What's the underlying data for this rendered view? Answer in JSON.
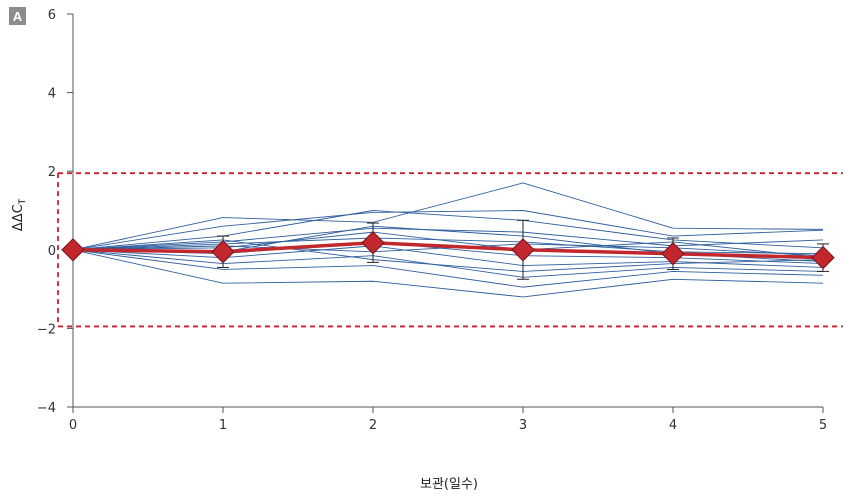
{
  "chart_data": {
    "type": "line",
    "panel_label": "A",
    "title": "",
    "xlabel": "보관(일수)",
    "ylabel_prefix": "ΔΔC",
    "ylabel_subscript": "T",
    "x": [
      0,
      1,
      2,
      3,
      4,
      5
    ],
    "xlim": [
      0,
      5
    ],
    "ylim": [
      -4,
      6
    ],
    "x_ticks": [
      "0",
      "1",
      "2",
      "3",
      "4",
      "5"
    ],
    "y_ticks": [
      "−4",
      "−2",
      "0",
      "2",
      "4",
      "6"
    ],
    "y_tick_values": [
      -4,
      -2,
      0,
      2,
      4,
      6
    ],
    "grid": false,
    "threshold_band": {
      "upper": 1.95,
      "lower": -1.95,
      "style": "dashed",
      "color": "#cc1f2d"
    },
    "colors": {
      "individual": "#2f5f9e",
      "mean": "#c1272d",
      "marker": "#c1272d",
      "axis": "#555555",
      "error": "#222222",
      "panel": "#8c8c8c"
    },
    "series": [
      {
        "values": [
          0,
          0.82,
          0.7,
          1.7,
          0.55,
          0.52
        ]
      },
      {
        "values": [
          0,
          0.6,
          0.95,
          1.0,
          0.35,
          0.5
        ]
      },
      {
        "values": [
          0,
          0.35,
          1.0,
          0.75,
          0.25,
          0.05
        ]
      },
      {
        "values": [
          0,
          0.2,
          0.55,
          0.45,
          0.1,
          0.25
        ]
      },
      {
        "values": [
          0,
          0.15,
          0.3,
          0.2,
          -0.05,
          -0.1
        ]
      },
      {
        "values": [
          0,
          0.05,
          0.45,
          0.0,
          0.2,
          -0.2
        ]
      },
      {
        "values": [
          0,
          -0.1,
          0.2,
          -0.15,
          -0.2,
          -0.35
        ]
      },
      {
        "values": [
          0,
          -0.2,
          0.1,
          -0.4,
          -0.3,
          -0.45
        ]
      },
      {
        "values": [
          0,
          -0.35,
          -0.15,
          -0.7,
          -0.45,
          -0.55
        ]
      },
      {
        "values": [
          0,
          -0.5,
          -0.4,
          -0.95,
          -0.55,
          -0.65
        ]
      },
      {
        "values": [
          0,
          -0.85,
          -0.8,
          -1.2,
          -0.75,
          -0.85
        ]
      },
      {
        "values": [
          0,
          0.25,
          -0.25,
          -0.55,
          -0.35,
          -0.25
        ]
      },
      {
        "values": [
          0,
          -0.05,
          0.6,
          0.35,
          -0.1,
          -0.3
        ]
      },
      {
        "values": [
          0,
          0.1,
          -0.05,
          0.15,
          0.05,
          -0.15
        ]
      }
    ],
    "mean": {
      "values": [
        0.0,
        -0.05,
        0.18,
        0.0,
        -0.1,
        -0.2
      ],
      "error": [
        0.0,
        0.4,
        0.5,
        0.75,
        0.4,
        0.35
      ]
    }
  }
}
